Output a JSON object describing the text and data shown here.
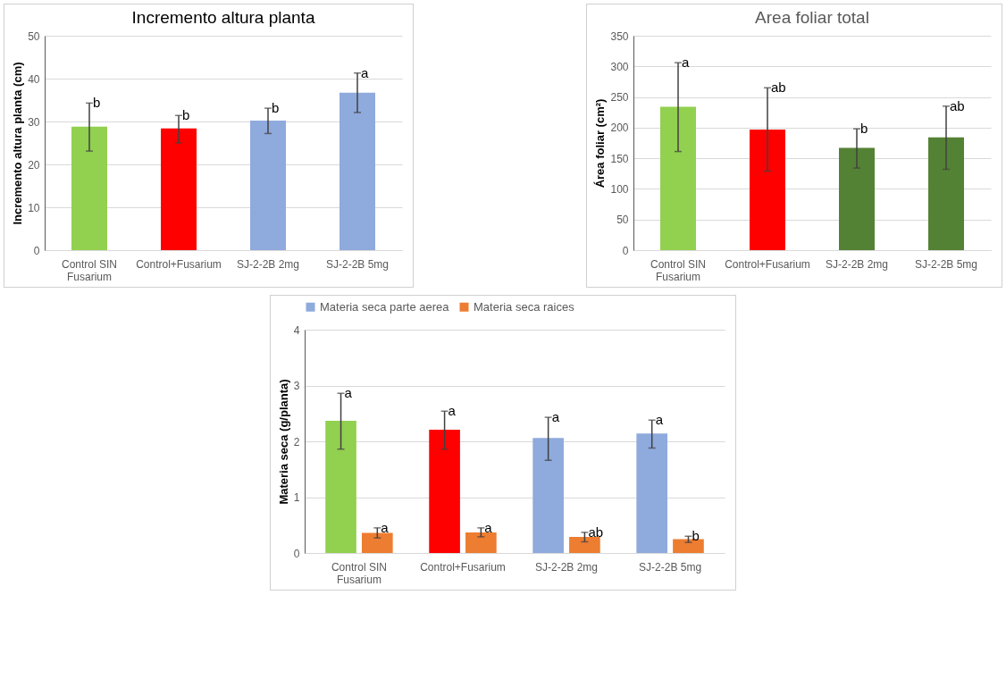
{
  "chart_data": [
    {
      "type": "bar",
      "title": "Incremento altura planta",
      "ylabel": "Incremento altura planta (cm)",
      "categories": [
        "Control SIN\nFusarium",
        "Control+Fusarium",
        "SJ-2-2B 2mg",
        "SJ-2-2B 5mg"
      ],
      "values": [
        28.8,
        28.4,
        30.2,
        36.7
      ],
      "colors": [
        "#92d050",
        "#ff0000",
        "#8faadc",
        "#8faadc"
      ],
      "errors": [
        [
          23.1,
          34.3
        ],
        [
          25.0,
          31.4
        ],
        [
          27.2,
          33.1
        ],
        [
          32.1,
          41.3
        ]
      ],
      "ylim": [
        0,
        50
      ],
      "yticks": [
        0,
        10,
        20,
        30,
        40,
        50
      ],
      "grid": "y",
      "legend": false,
      "annotations": [
        {
          "text": "b",
          "x": "Control SIN\nFusarium",
          "y": 34.3
        },
        {
          "text": "b",
          "x": "Control+Fusarium",
          "y": 31.4
        },
        {
          "text": "b",
          "x": "SJ-2-2B 2mg",
          "y": 33.1
        },
        {
          "text": "a",
          "x": "SJ-2-2B 5mg",
          "y": 41.3
        }
      ]
    },
    {
      "type": "bar",
      "title": "Area foliar total",
      "ylabel": "Área foliar (cm²)",
      "categories": [
        "Control SIN\nFusarium",
        "Control+Fusarium",
        "SJ-2-2B 2mg",
        "SJ-2-2B 5mg"
      ],
      "values": [
        234,
        197,
        167,
        184
      ],
      "colors": [
        "#92d050",
        "#ff0000",
        "#548235",
        "#548235"
      ],
      "errors": [
        [
          161,
          306
        ],
        [
          129,
          265
        ],
        [
          134,
          198
        ],
        [
          132,
          235
        ]
      ],
      "ylim": [
        0,
        350
      ],
      "yticks": [
        0,
        50,
        100,
        150,
        200,
        250,
        300,
        350
      ],
      "grid": "y",
      "legend": false,
      "annotations": [
        {
          "text": "a",
          "x": "Control SIN\nFusarium",
          "y": 306
        },
        {
          "text": "ab",
          "x": "Control+Fusarium",
          "y": 265
        },
        {
          "text": "b",
          "x": "SJ-2-2B 2mg",
          "y": 198
        },
        {
          "text": "ab",
          "x": "SJ-2-2B 5mg",
          "y": 235
        }
      ]
    },
    {
      "type": "bar",
      "ylabel": "Materia seca (g/planta)",
      "categories": [
        "Control SIN\nFusarium",
        "Control+Fusarium",
        "SJ-2-2B 2mg",
        "SJ-2-2B 5mg"
      ],
      "ylim": [
        0,
        4
      ],
      "yticks": [
        0,
        1,
        2,
        3,
        4
      ],
      "grid": "y",
      "legend": "top",
      "series": [
        {
          "name": "Materia seca parte aerea",
          "color": "#8faadc",
          "colors": [
            "#92d050",
            "#ff0000",
            "#8faadc",
            "#8faadc"
          ],
          "values": [
            2.37,
            2.21,
            2.06,
            2.14
          ],
          "errors": [
            [
              1.86,
              2.86
            ],
            [
              1.86,
              2.54
            ],
            [
              1.66,
              2.43
            ],
            [
              1.88,
              2.38
            ]
          ]
        },
        {
          "name": "Materia seca raices",
          "color": "#ed7d31",
          "values": [
            0.36,
            0.37,
            0.29,
            0.25
          ],
          "errors": [
            [
              0.27,
              0.45
            ],
            [
              0.29,
              0.45
            ],
            [
              0.2,
              0.37
            ],
            [
              0.19,
              0.3
            ]
          ]
        }
      ],
      "annotations": [
        "a",
        "a",
        "a",
        "a",
        {
          "text": "a",
          "x": "Control SIN\nFusarium",
          "y": 0.45
        },
        {
          "text": "a",
          "x": "Control+Fusarium",
          "y": 0.45
        },
        {
          "text": "ab",
          "x": "SJ-2-2B 2mg",
          "y": 0.37
        },
        {
          "text": "b",
          "x": "SJ-2-2B 5mg",
          "y": 0.3
        }
      ]
    }
  ]
}
